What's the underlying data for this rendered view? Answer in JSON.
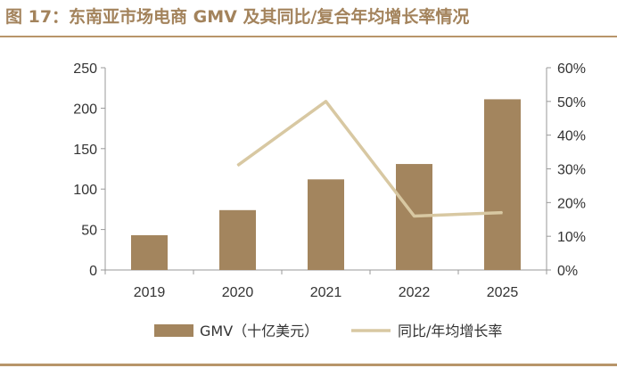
{
  "figure": {
    "title": "图 17：东南亚市场电商 GMV 及其同比/复合年均增长率情况"
  },
  "colors": {
    "bar": "#a3855e",
    "line": "#d8c8a2",
    "axis": "#999999",
    "title": "#a3835c",
    "rule": "#b8956a"
  },
  "chart_data": {
    "type": "bar",
    "title": "",
    "categories": [
      "2019",
      "2020",
      "2021",
      "2022",
      "2025"
    ],
    "series": [
      {
        "name": "GMV（十亿美元）",
        "type": "bar",
        "axis": "left",
        "values": [
          43,
          74,
          112,
          131,
          211
        ]
      },
      {
        "name": "同比/年均增长率",
        "type": "line",
        "axis": "right",
        "values": [
          null,
          31,
          50,
          16,
          17
        ]
      }
    ],
    "y_left": {
      "min": 0,
      "max": 250,
      "ticks": [
        "0",
        "50",
        "100",
        "150",
        "200",
        "250"
      ]
    },
    "y_right": {
      "min": 0,
      "max": 60,
      "ticks": [
        "0%",
        "10%",
        "20%",
        "30%",
        "40%",
        "50%",
        "60%"
      ]
    },
    "grid": false,
    "legend_position": "bottom"
  }
}
